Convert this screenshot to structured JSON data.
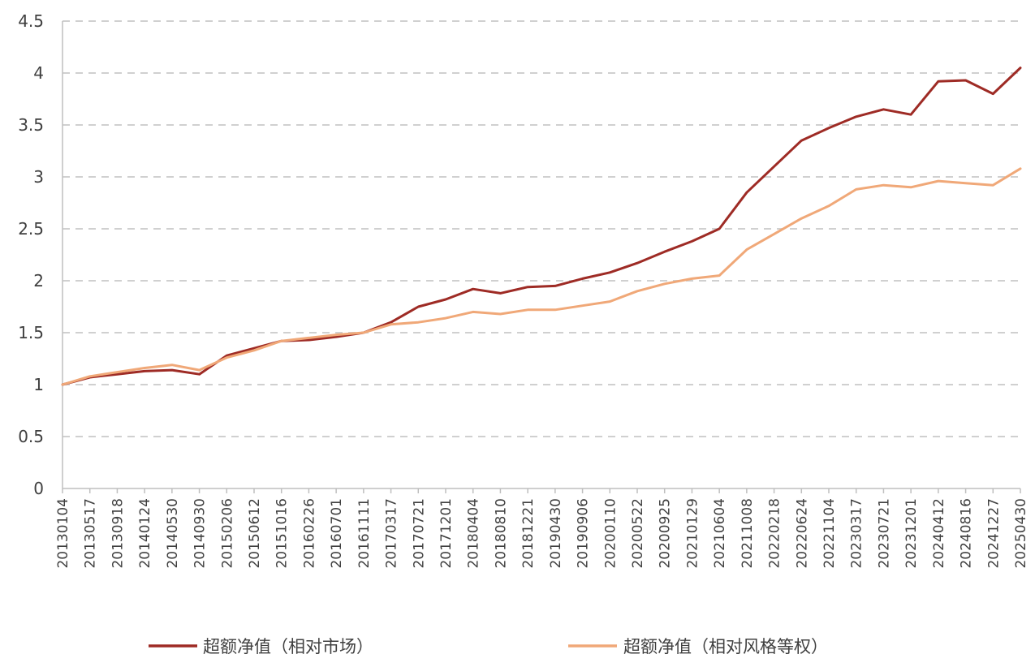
{
  "chart_data": {
    "type": "line",
    "title": "",
    "xlabel": "",
    "ylabel": "",
    "ylim": [
      0,
      4.5
    ],
    "yticks": [
      "0",
      "0.5",
      "1",
      "1.5",
      "2",
      "2.5",
      "3",
      "3.5",
      "4",
      "4.5"
    ],
    "grid": "horizontal dashed",
    "legend_position": "bottom",
    "x": [
      "20130104",
      "20130517",
      "20130918",
      "20140124",
      "20140530",
      "20140930",
      "20150206",
      "20150612",
      "20151016",
      "20160226",
      "20160701",
      "20161111",
      "20170317",
      "20170721",
      "20171201",
      "20180404",
      "20180810",
      "20181221",
      "20190430",
      "20190906",
      "20200110",
      "20200522",
      "20200925",
      "20210129",
      "20210604",
      "20211008",
      "20220218",
      "20220624",
      "20221104",
      "20230317",
      "20230721",
      "20231201",
      "20240412",
      "20240816",
      "20241227",
      "20250430"
    ],
    "series": [
      {
        "name": "超额净值（相对市场）",
        "color": "#9e2b25",
        "values": [
          1.0,
          1.07,
          1.1,
          1.13,
          1.14,
          1.1,
          1.28,
          1.35,
          1.42,
          1.43,
          1.46,
          1.5,
          1.6,
          1.75,
          1.82,
          1.92,
          1.88,
          1.94,
          1.95,
          2.02,
          2.08,
          2.17,
          2.28,
          2.38,
          2.5,
          2.85,
          3.1,
          3.35,
          3.47,
          3.58,
          3.65,
          3.6,
          3.92,
          3.93,
          3.8,
          4.05
        ]
      },
      {
        "name": "超额净值（相对风格等权）",
        "color": "#f0a878",
        "values": [
          1.0,
          1.08,
          1.12,
          1.16,
          1.19,
          1.14,
          1.26,
          1.33,
          1.42,
          1.45,
          1.48,
          1.5,
          1.58,
          1.6,
          1.64,
          1.7,
          1.68,
          1.72,
          1.72,
          1.76,
          1.8,
          1.9,
          1.97,
          2.02,
          2.05,
          2.3,
          2.45,
          2.6,
          2.72,
          2.88,
          2.92,
          2.9,
          2.96,
          2.94,
          2.92,
          3.08
        ]
      }
    ]
  }
}
